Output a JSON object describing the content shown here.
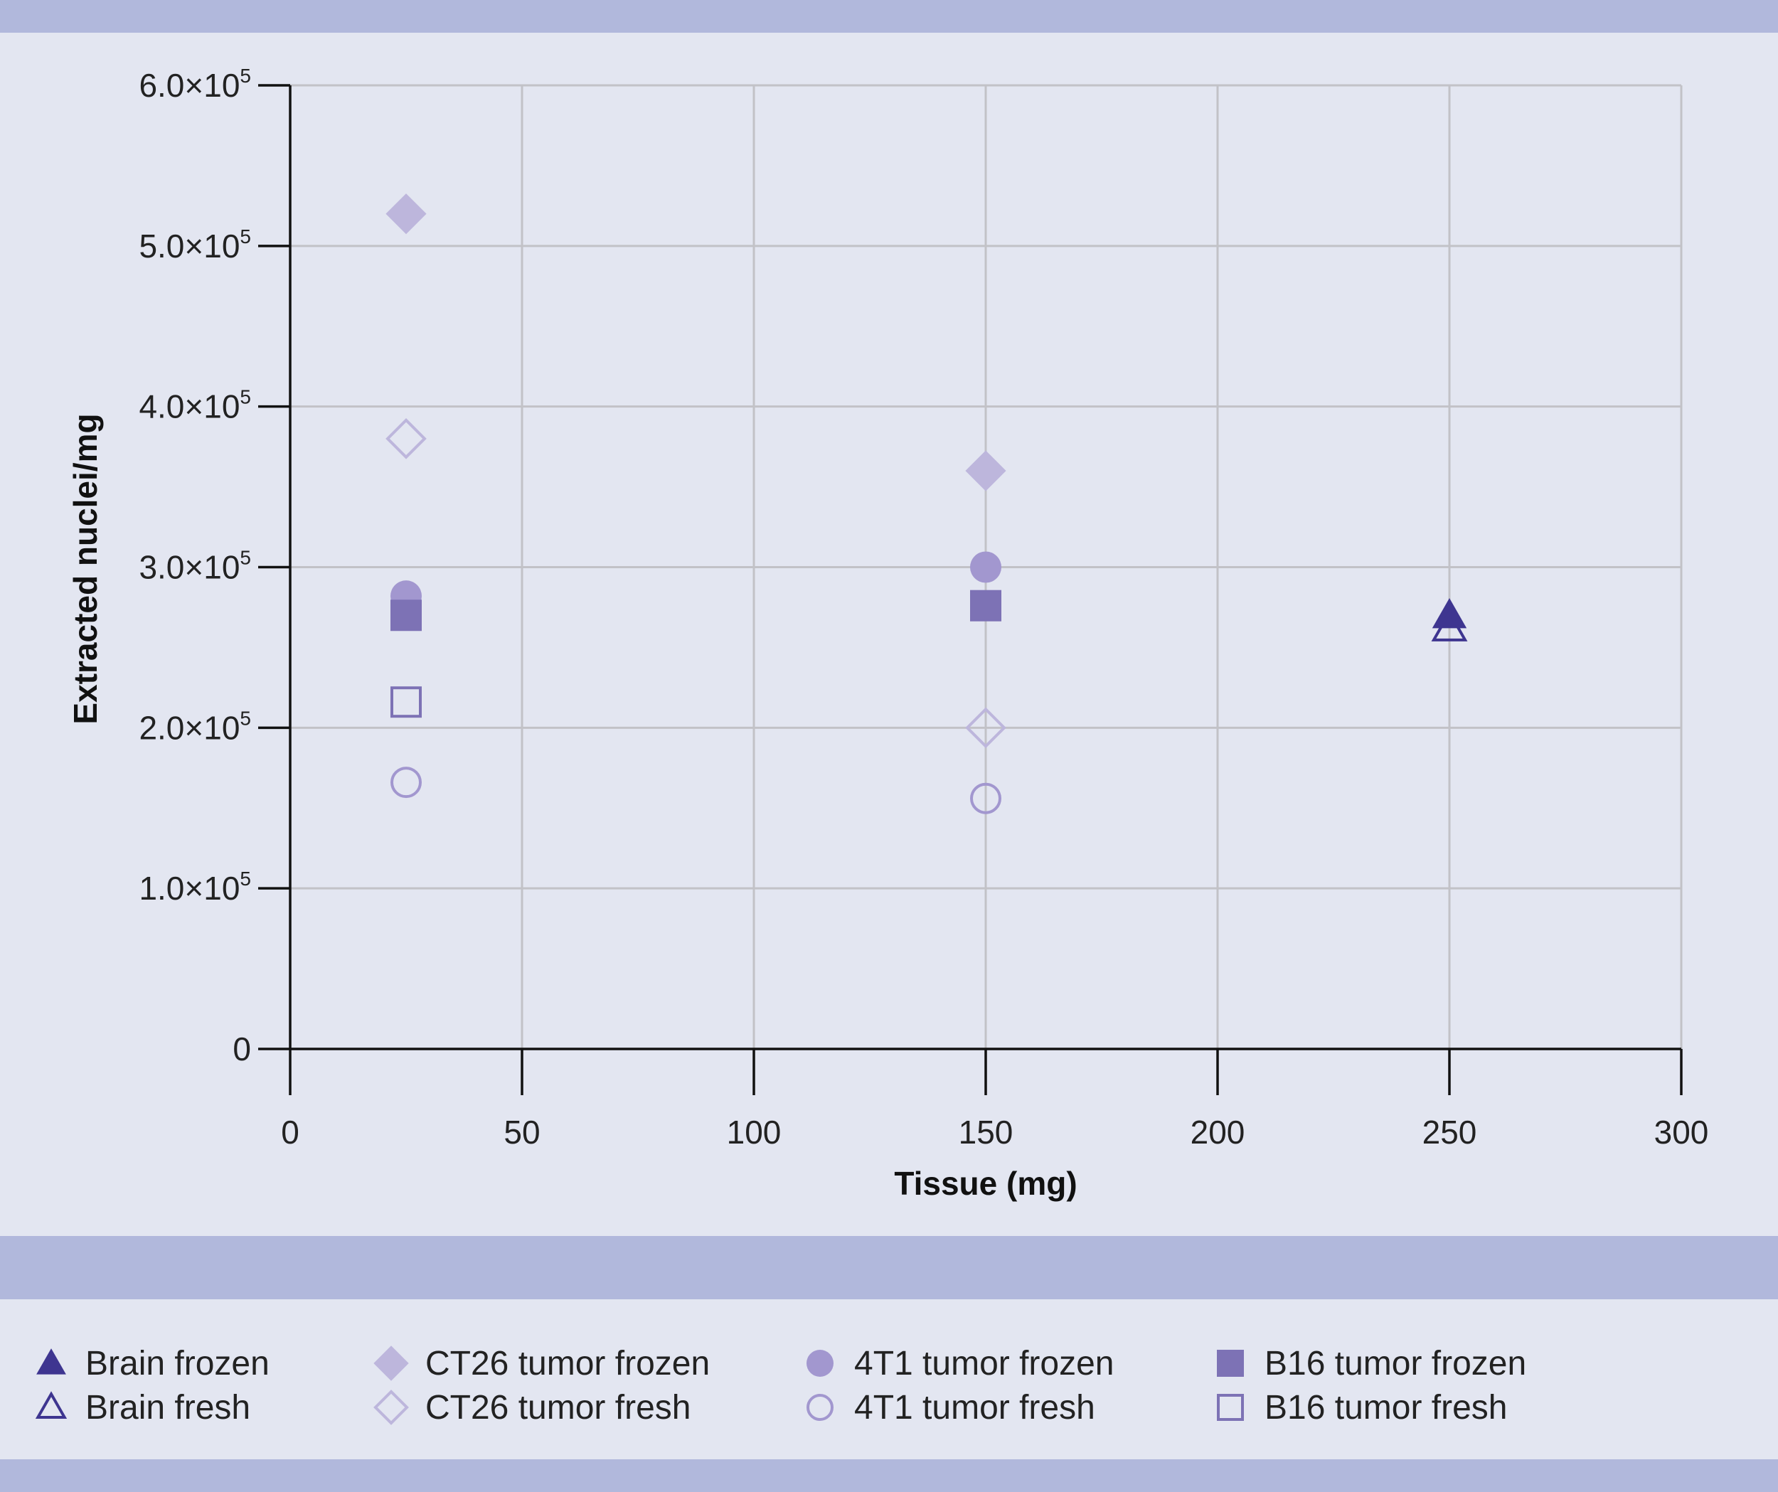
{
  "chart_data": {
    "type": "scatter",
    "xlabel": "Tissue (mg)",
    "ylabel": "Extracted nuclei/mg",
    "xlim": [
      0,
      300
    ],
    "ylim": [
      0,
      600000
    ],
    "x_ticks": [
      "0",
      "50",
      "100",
      "150",
      "200",
      "250",
      "300"
    ],
    "y_ticks": [
      {
        "mantissa": "0",
        "exp": ""
      },
      {
        "mantissa": "1.0×10",
        "exp": "5"
      },
      {
        "mantissa": "2.0×10",
        "exp": "5"
      },
      {
        "mantissa": "3.0×10",
        "exp": "5"
      },
      {
        "mantissa": "4.0×10",
        "exp": "5"
      },
      {
        "mantissa": "5.0×10",
        "exp": "5"
      },
      {
        "mantissa": "6.0×10",
        "exp": "5"
      }
    ],
    "grid": true,
    "legend_position": "bottom",
    "series": [
      {
        "name": "Brain frozen",
        "marker": "triangle",
        "filled": true,
        "color": "#3e3590",
        "points": [
          {
            "x": 250,
            "y": 270000
          }
        ]
      },
      {
        "name": "Brain fresh",
        "marker": "triangle",
        "filled": false,
        "color": "#3e3590",
        "points": [
          {
            "x": 250,
            "y": 262000
          }
        ]
      },
      {
        "name": "CT26 tumor frozen",
        "marker": "diamond",
        "filled": true,
        "color": "#bdb6dc",
        "points": [
          {
            "x": 25,
            "y": 520000
          },
          {
            "x": 150,
            "y": 360000
          }
        ]
      },
      {
        "name": "CT26 tumor fresh",
        "marker": "diamond",
        "filled": false,
        "color": "#bdb6dc",
        "points": [
          {
            "x": 25,
            "y": 380000
          },
          {
            "x": 150,
            "y": 200000
          }
        ]
      },
      {
        "name": "4T1 tumor frozen",
        "marker": "circle",
        "filled": true,
        "color": "#a297cf",
        "points": [
          {
            "x": 25,
            "y": 282000
          },
          {
            "x": 150,
            "y": 300000
          }
        ]
      },
      {
        "name": "4T1 tumor fresh",
        "marker": "circle",
        "filled": false,
        "color": "#a297cf",
        "points": [
          {
            "x": 25,
            "y": 166000
          },
          {
            "x": 150,
            "y": 156000
          }
        ]
      },
      {
        "name": "B16 tumor frozen",
        "marker": "square",
        "filled": true,
        "color": "#7d72b5",
        "points": [
          {
            "x": 25,
            "y": 270000
          },
          {
            "x": 150,
            "y": 276000
          }
        ]
      },
      {
        "name": "B16 tumor fresh",
        "marker": "square",
        "filled": false,
        "color": "#7d72b5",
        "points": [
          {
            "x": 25,
            "y": 216000
          }
        ]
      }
    ]
  },
  "colors": {
    "background": "#e3e6f1",
    "band": "#b1b8dc",
    "grid": "#c2c2c7",
    "axis": "#111111"
  }
}
